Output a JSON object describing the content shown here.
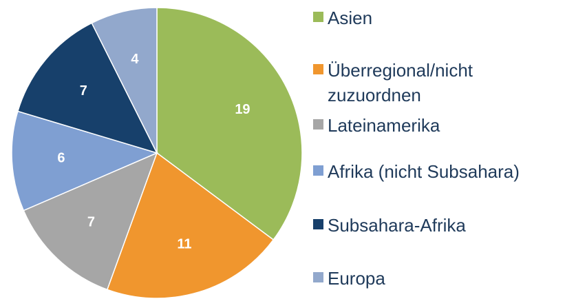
{
  "chart_data": {
    "type": "pie",
    "categories": [
      "Asien",
      "Überregional/nicht zuzuordnen",
      "Lateinamerika",
      "Afrika (nicht Subsahara)",
      "Subsahara-Afrika",
      "Europa"
    ],
    "values": [
      19,
      11,
      7,
      6,
      7,
      4
    ],
    "colors": [
      "#9bbb59",
      "#f0962e",
      "#a6a6a6",
      "#7f9fd2",
      "#17406b",
      "#92a8cc"
    ],
    "legend": "right"
  }
}
